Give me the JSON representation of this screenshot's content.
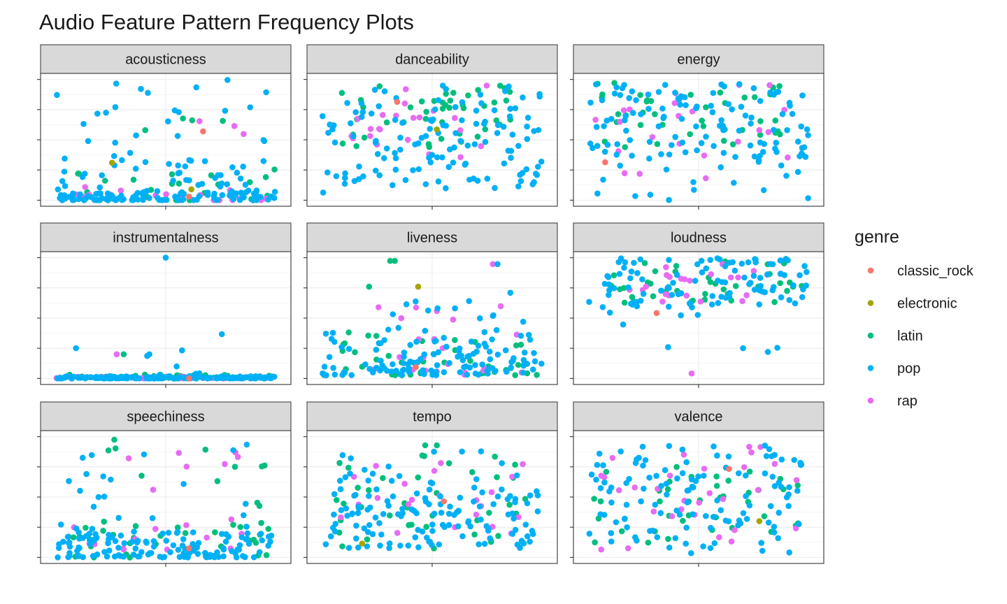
{
  "chart_data": {
    "type": "scatter",
    "title": "Audio Feature Pattern Frequency Plots",
    "xlabel": "",
    "ylabel": "",
    "grid": true,
    "legend": {
      "title": "genre",
      "position": "right",
      "entries": [
        {
          "label": "classic_rock",
          "color": "#F8766D"
        },
        {
          "label": "electronic",
          "color": "#A3A500"
        },
        {
          "label": "latin",
          "color": "#00BF7D"
        },
        {
          "label": "pop",
          "color": "#00B0F6"
        },
        {
          "label": "rap",
          "color": "#E76BF3"
        }
      ]
    },
    "facets": [
      {
        "name": "acousticness",
        "ylim": [
          0,
          1
        ],
        "clusters": [
          {
            "genre": "pop",
            "n": 105,
            "x": [
              0.03,
              0.97
            ],
            "y": [
              0.0,
              0.08
            ],
            "mode": "low"
          },
          {
            "genre": "pop",
            "n": 40,
            "x": [
              0.03,
              0.97
            ],
            "y": [
              0.08,
              0.42
            ]
          },
          {
            "genre": "pop",
            "n": 22,
            "x": [
              0.03,
              0.97
            ],
            "y": [
              0.42,
              1.0
            ]
          },
          {
            "genre": "latin",
            "n": 26,
            "x": [
              0.12,
              0.97
            ],
            "y": [
              0.0,
              0.28
            ],
            "mode": "low"
          },
          {
            "genre": "latin",
            "n": 4,
            "x": [
              0.2,
              0.8
            ],
            "y": [
              0.5,
              0.8
            ]
          },
          {
            "genre": "rap",
            "n": 20,
            "x": [
              0.1,
              0.95
            ],
            "y": [
              0.0,
              0.12
            ],
            "mode": "low"
          },
          {
            "genre": "rap",
            "n": 3,
            "x": [
              0.5,
              0.95
            ],
            "y": [
              0.3,
              0.8
            ]
          }
        ],
        "points": [
          {
            "genre": "classic_rock",
            "x": 0.66,
            "y": 0.57
          },
          {
            "genre": "classic_rock",
            "x": 0.6,
            "y": 0.03
          },
          {
            "genre": "electronic",
            "x": 0.61,
            "y": 0.09
          },
          {
            "genre": "electronic",
            "x": 0.27,
            "y": 0.31
          }
        ]
      },
      {
        "name": "danceability",
        "ylim": [
          0.3,
          1
        ],
        "clusters": [
          {
            "genre": "pop",
            "n": 120,
            "x": [
              0.03,
              0.97
            ],
            "y": [
              0.38,
              0.97
            ]
          },
          {
            "genre": "pop",
            "n": 8,
            "x": [
              0.03,
              0.97
            ],
            "y": [
              0.34,
              0.42
            ]
          },
          {
            "genre": "latin",
            "n": 45,
            "x": [
              0.05,
              0.85
            ],
            "y": [
              0.6,
              0.97
            ]
          },
          {
            "genre": "rap",
            "n": 22,
            "x": [
              0.15,
              0.85
            ],
            "y": [
              0.45,
              0.97
            ]
          }
        ],
        "points": [
          {
            "genre": "classic_rock",
            "x": 0.35,
            "y": 0.87
          },
          {
            "genre": "electronic",
            "x": 0.52,
            "y": 0.71
          }
        ]
      },
      {
        "name": "energy",
        "ylim": [
          0.3,
          1
        ],
        "clusters": [
          {
            "genre": "pop",
            "n": 110,
            "x": [
              0.03,
              0.97
            ],
            "y": [
              0.55,
              0.98
            ]
          },
          {
            "genre": "pop",
            "n": 20,
            "x": [
              0.03,
              0.97
            ],
            "y": [
              0.3,
              0.6
            ]
          },
          {
            "genre": "latin",
            "n": 40,
            "x": [
              0.05,
              0.9
            ],
            "y": [
              0.6,
              0.99
            ]
          },
          {
            "genre": "rap",
            "n": 22,
            "x": [
              0.05,
              0.9
            ],
            "y": [
              0.4,
              0.97
            ]
          }
        ],
        "points": [
          {
            "genre": "classic_rock",
            "x": 0.1,
            "y": 0.52
          }
        ]
      },
      {
        "name": "instrumentalness",
        "ylim": [
          0,
          0.3
        ],
        "clusters": [
          {
            "genre": "pop",
            "n": 170,
            "x": [
              0.03,
              0.97
            ],
            "y": [
              0.0,
              0.006
            ],
            "mode": "low"
          },
          {
            "genre": "pop",
            "n": 8,
            "x": [
              0.03,
              0.97
            ],
            "y": [
              0.006,
              0.1
            ],
            "mode": "low"
          },
          {
            "genre": "latin",
            "n": 45,
            "x": [
              0.03,
              0.97
            ],
            "y": [
              0.0,
              0.01
            ],
            "mode": "low"
          },
          {
            "genre": "rap",
            "n": 30,
            "x": [
              0.03,
              0.97
            ],
            "y": [
              0.0,
              0.005
            ],
            "mode": "low"
          }
        ],
        "points": [
          {
            "genre": "pop",
            "x": 0.5,
            "y": 0.3
          },
          {
            "genre": "pop",
            "x": 0.74,
            "y": 0.11
          },
          {
            "genre": "pop",
            "x": 0.43,
            "y": 0.06
          },
          {
            "genre": "latin",
            "x": 0.32,
            "y": 0.06
          },
          {
            "genre": "rap",
            "x": 0.29,
            "y": 0.06
          },
          {
            "genre": "classic_rock",
            "x": 0.6,
            "y": 0.0
          }
        ]
      },
      {
        "name": "liveness",
        "ylim": [
          0,
          0.75
        ],
        "clusters": [
          {
            "genre": "pop",
            "n": 120,
            "x": [
              0.03,
              0.97
            ],
            "y": [
              0.02,
              0.3
            ],
            "mode": "low"
          },
          {
            "genre": "pop",
            "n": 15,
            "x": [
              0.1,
              0.95
            ],
            "y": [
              0.3,
              0.55
            ]
          },
          {
            "genre": "latin",
            "n": 40,
            "x": [
              0.03,
              0.97
            ],
            "y": [
              0.02,
              0.3
            ],
            "mode": "low"
          },
          {
            "genre": "rap",
            "n": 22,
            "x": [
              0.2,
              0.95
            ],
            "y": [
              0.02,
              0.45
            ],
            "mode": "low"
          }
        ],
        "points": [
          {
            "genre": "latin",
            "x": 0.32,
            "y": 0.73
          },
          {
            "genre": "latin",
            "x": 0.34,
            "y": 0.73
          },
          {
            "genre": "latin",
            "x": 0.23,
            "y": 0.57
          },
          {
            "genre": "electronic",
            "x": 0.44,
            "y": 0.57
          },
          {
            "genre": "rap",
            "x": 0.76,
            "y": 0.71
          },
          {
            "genre": "pop",
            "x": 0.78,
            "y": 0.71
          },
          {
            "genre": "classic_rock",
            "x": 0.43,
            "y": 0.07
          }
        ]
      },
      {
        "name": "loudness",
        "ylim": [
          -14,
          -2
        ],
        "clusters": [
          {
            "genre": "pop",
            "n": 100,
            "x": [
              0.03,
              0.97
            ],
            "y": [
              -7.0,
              -2.0
            ]
          },
          {
            "genre": "pop",
            "n": 8,
            "x": [
              0.05,
              0.85
            ],
            "y": [
              -12.0,
              -7.0
            ]
          },
          {
            "genre": "latin",
            "n": 40,
            "x": [
              0.05,
              0.97
            ],
            "y": [
              -6.5,
              -2.0
            ]
          },
          {
            "genre": "rap",
            "n": 22,
            "x": [
              0.2,
              0.97
            ],
            "y": [
              -6.5,
              -2.5
            ]
          }
        ],
        "points": [
          {
            "genre": "classic_rock",
            "x": 0.32,
            "y": -7.5
          },
          {
            "genre": "rap",
            "x": 0.47,
            "y": -13.5
          }
        ]
      },
      {
        "name": "speechiness",
        "ylim": [
          0,
          0.4
        ],
        "clusters": [
          {
            "genre": "pop",
            "n": 130,
            "x": [
              0.03,
              0.97
            ],
            "y": [
              0.0,
              0.1
            ],
            "mode": "low"
          },
          {
            "genre": "pop",
            "n": 20,
            "x": [
              0.05,
              0.95
            ],
            "y": [
              0.1,
              0.38
            ]
          },
          {
            "genre": "latin",
            "n": 40,
            "x": [
              0.05,
              0.95
            ],
            "y": [
              0.0,
              0.12
            ],
            "mode": "low"
          },
          {
            "genre": "latin",
            "n": 10,
            "x": [
              0.2,
              0.95
            ],
            "y": [
              0.15,
              0.38
            ]
          },
          {
            "genre": "rap",
            "n": 20,
            "x": [
              0.1,
              0.9
            ],
            "y": [
              0.02,
              0.35
            ]
          }
        ],
        "points": [
          {
            "genre": "latin",
            "x": 0.28,
            "y": 0.39
          },
          {
            "genre": "classic_rock",
            "x": 0.6,
            "y": 0.03
          }
        ]
      },
      {
        "name": "tempo",
        "ylim": [
          70,
          210
        ],
        "clusters": [
          {
            "genre": "pop",
            "n": 120,
            "x": [
              0.03,
              0.97
            ],
            "y": [
              80.0,
              150.0
            ]
          },
          {
            "genre": "pop",
            "n": 20,
            "x": [
              0.1,
              0.95
            ],
            "y": [
              150.0,
              195.0
            ]
          },
          {
            "genre": "latin",
            "n": 40,
            "x": [
              0.05,
              0.95
            ],
            "y": [
              80.0,
              190.0
            ]
          },
          {
            "genre": "rap",
            "n": 22,
            "x": [
              0.1,
              0.9
            ],
            "y": [
              90.0,
              180.0
            ]
          }
        ],
        "points": [
          {
            "genre": "latin",
            "x": 0.47,
            "y": 200
          },
          {
            "genre": "latin",
            "x": 0.52,
            "y": 200
          },
          {
            "genre": "electronic",
            "x": 0.2,
            "y": 86
          },
          {
            "genre": "classic_rock",
            "x": 0.55,
            "y": 135
          }
        ]
      },
      {
        "name": "valence",
        "ylim": [
          0.1,
          1
        ],
        "clusters": [
          {
            "genre": "pop",
            "n": 120,
            "x": [
              0.03,
              0.97
            ],
            "y": [
              0.12,
              0.95
            ]
          },
          {
            "genre": "latin",
            "n": 40,
            "x": [
              0.05,
              0.95
            ],
            "y": [
              0.2,
              0.8
            ]
          },
          {
            "genre": "rap",
            "n": 30,
            "x": [
              0.05,
              0.95
            ],
            "y": [
              0.15,
              0.95
            ]
          }
        ],
        "points": [
          {
            "genre": "classic_rock",
            "x": 0.63,
            "y": 0.76
          },
          {
            "genre": "electronic",
            "x": 0.76,
            "y": 0.37
          }
        ]
      }
    ]
  }
}
